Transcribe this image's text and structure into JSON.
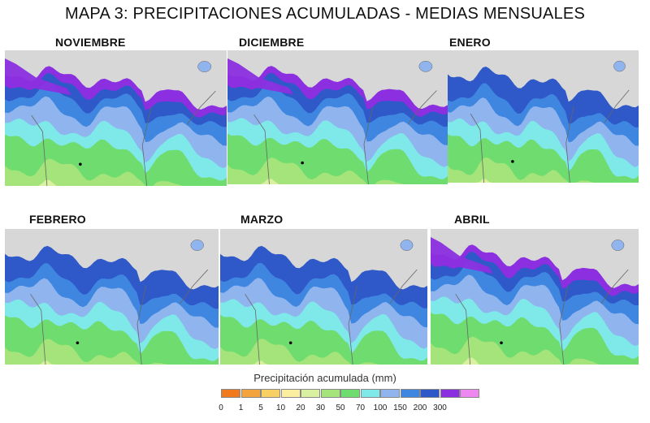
{
  "title": "MAPA 3: PRECIPITACIONES ACUMULADAS - MEDIAS MENSUALES",
  "panels": [
    {
      "label": "NOVIEMBRE",
      "profile": [
        0.95,
        0.85,
        0.62,
        0.42,
        0.08
      ]
    },
    {
      "label": "DICIEMBRE",
      "profile": [
        0.95,
        0.82,
        0.6,
        0.4,
        0.08
      ]
    },
    {
      "label": "ENERO",
      "profile": [
        0.88,
        0.74,
        0.52,
        0.3,
        0.04
      ]
    },
    {
      "label": "FEBRERO",
      "profile": [
        0.86,
        0.7,
        0.48,
        0.28,
        0.03
      ]
    },
    {
      "label": "MARZO",
      "profile": [
        0.86,
        0.72,
        0.5,
        0.3,
        0.04
      ]
    },
    {
      "label": "ABRIL",
      "profile": [
        0.96,
        0.86,
        0.66,
        0.48,
        0.12
      ]
    }
  ],
  "legend": {
    "title": "Precipitación acumulada (mm)",
    "ticks": [
      "0",
      "1",
      "5",
      "10",
      "20",
      "30",
      "50",
      "70",
      "100",
      "150",
      "200",
      "300"
    ],
    "colors": [
      "#f07a1c",
      "#f3a43c",
      "#f8cf63",
      "#fbeea0",
      "#d8f0a0",
      "#a4e47a",
      "#6fdc6f",
      "#7fe8e8",
      "#8fb4ee",
      "#3f86e0",
      "#2f58c8",
      "#8c2fe0",
      "#ee88f0"
    ]
  },
  "colors": {
    "sea": "#d7d7d7",
    "dry_land": "#e2e8b0",
    "border": "#666666"
  }
}
